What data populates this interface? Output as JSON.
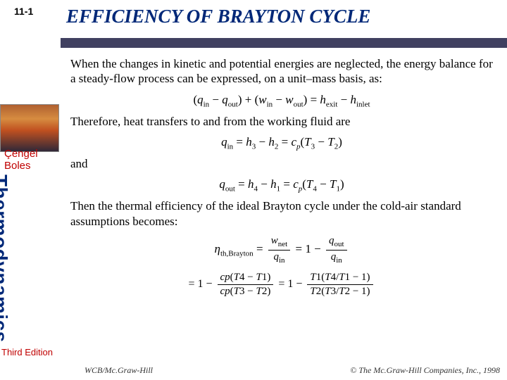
{
  "page_number": "11-1",
  "sidebar": {
    "authors_line1": "Çengel",
    "authors_line2": "Boles",
    "vertical_title": "Thermodynamics",
    "edition": "Third Edition"
  },
  "title": "EFFICIENCY OF BRAYTON CYCLE",
  "colors": {
    "title_color": "#002878",
    "underline_color": "#404060",
    "author_color": "#c00000",
    "text_color": "#000000",
    "background": "#ffffff"
  },
  "body": {
    "para1": "When the changes in kinetic and potential energies are neglected, the energy balance for a steady-flow process can be expressed, on a unit–mass basis, as:",
    "eq1": "(q_in − q_out) + (w_in − w_out) = h_exit − h_inlet",
    "para2": "Therefore, heat transfers to and from the working fluid are",
    "eq2": "q_in = h_3 − h_2 = c_p(T_3 − T_2)",
    "and": "and",
    "eq3": "q_out = h_4 − h_1 = c_p(T_4 − T_1)",
    "para3": "Then the thermal efficiency of the ideal Brayton cycle under the cold-air standard assumptions becomes:",
    "eq4_lhs": "η_th,Brayton =",
    "eq4_frac1_num": "w_net",
    "eq4_frac1_den": "q_in",
    "eq4_mid": "= 1 −",
    "eq4_frac2_num": "q_out",
    "eq4_frac2_den": "q_in",
    "eq5_lhs": "= 1 −",
    "eq5_num": "c_p(T_4 − T_1)",
    "eq5_den": "c_p(T_3 − T_2)",
    "eq5_mid": "= 1 −",
    "eq5_num2": "T_1(T_4/T_1 − 1)",
    "eq5_den2": "T_2(T_3/T_2 − 1)"
  },
  "footer": {
    "left": "WCB/Mc.Graw-Hill",
    "right": "© The Mc.Graw-Hill Companies, Inc., 1998"
  }
}
